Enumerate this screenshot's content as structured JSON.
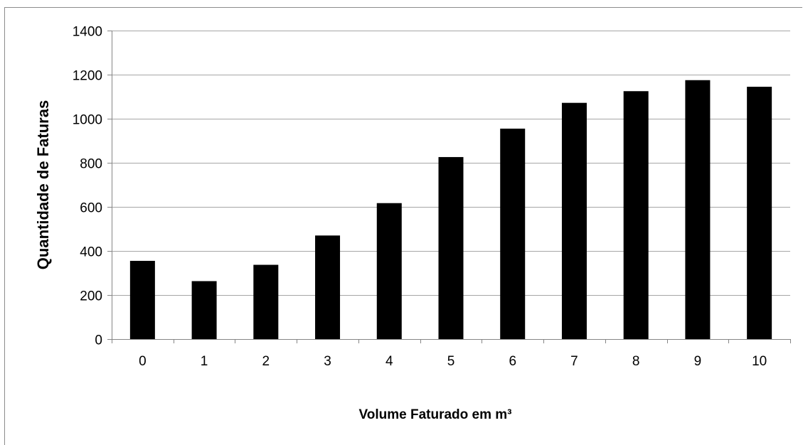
{
  "chart_data": {
    "type": "bar",
    "title": "",
    "xlabel": "Volume Faturado em m³",
    "ylabel": "Quantidade de Faturas",
    "categories": [
      "0",
      "1",
      "2",
      "3",
      "4",
      "5",
      "6",
      "7",
      "8",
      "9",
      "10"
    ],
    "values": [
      355,
      263,
      337,
      470,
      617,
      826,
      955,
      1072,
      1125,
      1175,
      1145
    ],
    "ylim": [
      0,
      1400
    ],
    "yticks": [
      0,
      200,
      400,
      600,
      800,
      1000,
      1200,
      1400
    ],
    "grid": "horizontal",
    "legend": "none",
    "colors": {
      "bar": "#000000",
      "gridline": "#a6a6a6",
      "axis": "#868686",
      "frame": "#8c8c8c"
    }
  }
}
